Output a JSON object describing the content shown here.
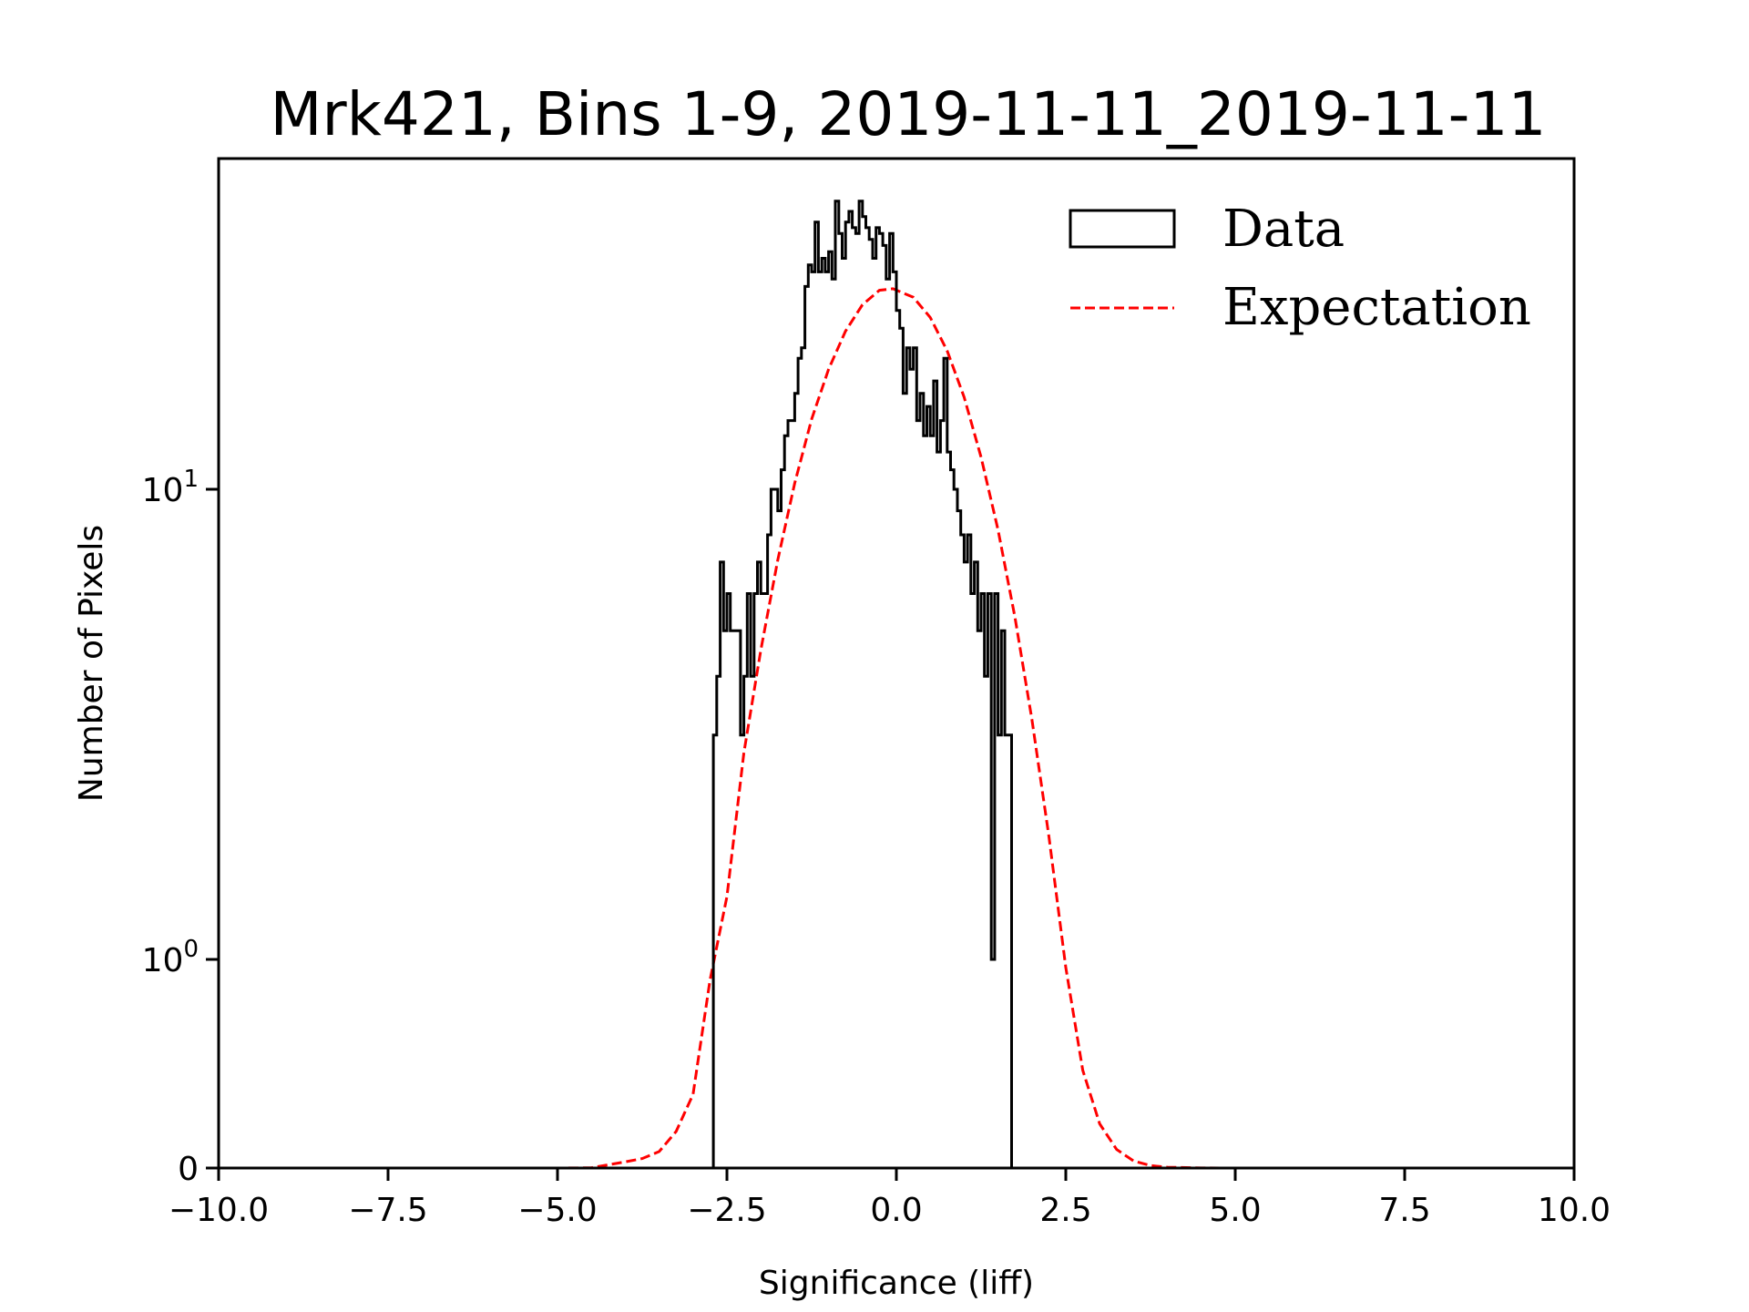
{
  "chart_data": {
    "type": "histogram",
    "title": "Mrk421, Bins 1-9, 2019-11-11_2019-11-11",
    "xlabel": "Significance (liff)",
    "ylabel": "Number of Pixels",
    "xlim": [
      -10,
      10
    ],
    "yscale": "symlog",
    "ylim": [
      0,
      50
    ],
    "linthresh": 1,
    "grid": false,
    "legend_position": "top-right",
    "x_ticks": [
      {
        "value": -10.0,
        "label": "−10.0"
      },
      {
        "value": -7.5,
        "label": "−7.5"
      },
      {
        "value": -5.0,
        "label": "−5.0"
      },
      {
        "value": -2.5,
        "label": "−2.5"
      },
      {
        "value": 0.0,
        "label": "0.0"
      },
      {
        "value": 2.5,
        "label": "2.5"
      },
      {
        "value": 5.0,
        "label": "5.0"
      },
      {
        "value": 7.5,
        "label": "7.5"
      },
      {
        "value": 10.0,
        "label": "10.0"
      }
    ],
    "y_ticks": [
      {
        "value": 0,
        "base": "0",
        "exp": ""
      },
      {
        "value": 1,
        "base": "10",
        "exp": "0"
      },
      {
        "value": 10,
        "base": "10",
        "exp": "1"
      }
    ],
    "series": [
      {
        "name": "Data",
        "kind": "step-histogram",
        "color": "#000000",
        "bin_start": -2.7,
        "bin_width": 0.05,
        "values": [
          3,
          4,
          7,
          5,
          6,
          5,
          5,
          5,
          3,
          4,
          6,
          4,
          6,
          7,
          6,
          6,
          8,
          10,
          10,
          9,
          11,
          13,
          14,
          14,
          16,
          19,
          20,
          27,
          30,
          29,
          37,
          29,
          31,
          29,
          32,
          28,
          41,
          35,
          31,
          37,
          39,
          36,
          35,
          41,
          38,
          36,
          34,
          31,
          36,
          35,
          33,
          28,
          35,
          29,
          24,
          22,
          16,
          20,
          18,
          20,
          14,
          16,
          13,
          15,
          13,
          17,
          12,
          14,
          19,
          12,
          11,
          10,
          9,
          8,
          7,
          8,
          6,
          7,
          5,
          6,
          4,
          6,
          1,
          6,
          3,
          5,
          3,
          3
        ]
      },
      {
        "name": "Expectation",
        "kind": "line",
        "color": "#ff0000",
        "style": "dashed",
        "x": [
          -10,
          -6,
          -5,
          -4.5,
          -4,
          -3.75,
          -3.5,
          -3.25,
          -3,
          -2.75,
          -2.5,
          -2.25,
          -2,
          -1.75,
          -1.5,
          -1.25,
          -1,
          -0.75,
          -0.5,
          -0.25,
          -0.05,
          0.25,
          0.5,
          0.75,
          1,
          1.25,
          1.5,
          1.75,
          2,
          2.25,
          2.5,
          2.75,
          3,
          3.25,
          3.5,
          3.75,
          4,
          4.5,
          5,
          6,
          10
        ],
        "y": [
          0,
          0.0,
          0.0,
          0.0015,
          0.0295,
          0.0453,
          0.0789,
          0.175,
          0.353,
          0.9,
          1.36,
          2.75,
          4.55,
          7.07,
          10.3,
          14.1,
          18.0,
          21.7,
          24.7,
          26.5,
          26.7,
          25.6,
          23.2,
          19.7,
          15.7,
          11.7,
          8.2,
          5.34,
          3.24,
          1.83,
          0.961,
          0.469,
          0.212,
          0.089,
          0.034,
          0.012,
          0.004,
          0.0003,
          0.0,
          0.0,
          0
        ]
      }
    ]
  }
}
